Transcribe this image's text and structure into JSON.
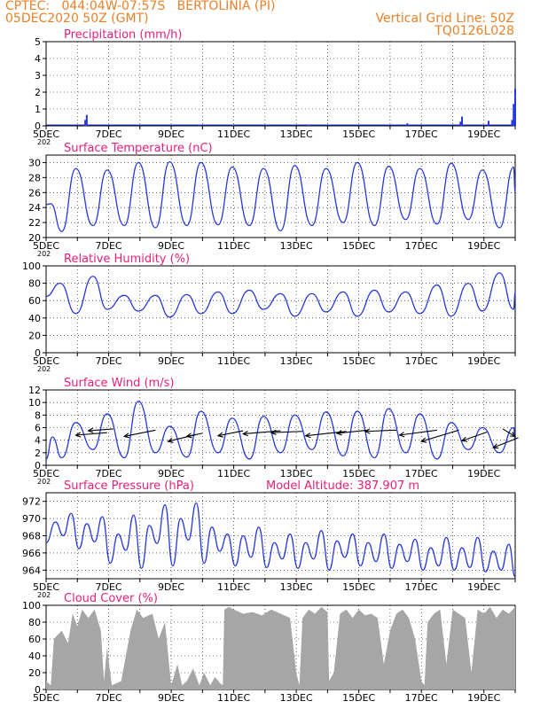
{
  "header": {
    "line1": "CPTEC:   044:04W-07:57S   BERTOLINIA (PI)",
    "line2": "05DEC2020 50Z (GMT)",
    "grid_note": "Vertical Grid Line: 50Z",
    "code": "TQ0126L028"
  },
  "colors": {
    "header": "#e8812a",
    "title": "#e8207a",
    "series": "#2638e0",
    "cloud": "#a6a6a6",
    "wind_arrow": "#000000"
  },
  "x_axis": {
    "tick_days": [
      5,
      7,
      9,
      11,
      13,
      15,
      17,
      19
    ],
    "tick_labels": [
      "5DEC",
      "7DEC",
      "9DEC",
      "11DEC",
      "13DEC",
      "15DEC",
      "17DEC",
      "19DEC"
    ],
    "year_fragment": "202",
    "start_day": 5,
    "end_day": 20
  },
  "chart_data": [
    {
      "type": "bar",
      "title": "Precipitation (mm/h)",
      "ylim": [
        0,
        5
      ],
      "yticks": [
        0,
        1,
        2,
        3,
        4,
        5
      ],
      "grid": "dotted",
      "x": [
        6.25,
        6.3,
        9.9,
        11.0,
        13.4,
        16.55,
        18.25,
        18.3,
        19.15,
        19.9,
        19.95,
        20.0
      ],
      "values": [
        0.35,
        0.65,
        0.05,
        0.05,
        0.05,
        0.15,
        0.25,
        0.55,
        0.3,
        0.35,
        1.3,
        2.2
      ]
    },
    {
      "type": "line",
      "title": "Surface Temperature (nC)",
      "ylim": [
        20,
        31
      ],
      "yticks": [
        20,
        22,
        24,
        26,
        28,
        30
      ],
      "grid": "dotted",
      "x": [
        5.0,
        5.15,
        5.5,
        5.95,
        6.5,
        6.95,
        7.5,
        7.95,
        8.5,
        8.95,
        9.5,
        9.95,
        10.5,
        10.95,
        11.5,
        11.95,
        12.5,
        12.95,
        13.5,
        13.95,
        14.5,
        14.95,
        15.5,
        15.95,
        16.5,
        16.95,
        17.5,
        17.95,
        18.5,
        18.95,
        19.5,
        19.95,
        20.0
      ],
      "values": [
        24.4,
        24.5,
        20.8,
        29.2,
        21.6,
        29.0,
        21.6,
        30.0,
        21.3,
        30.1,
        21.6,
        30.0,
        21.7,
        29.4,
        21.6,
        29.2,
        20.9,
        29.6,
        21.6,
        29.2,
        22.0,
        30.0,
        21.6,
        29.5,
        22.4,
        29.2,
        21.8,
        29.9,
        22.4,
        29.0,
        21.3,
        29.4,
        26.0
      ]
    },
    {
      "type": "line",
      "title": "Relative Humidity (%)",
      "ylim": [
        0,
        100
      ],
      "yticks": [
        0,
        20,
        40,
        60,
        80,
        100
      ],
      "grid": "dotted",
      "x": [
        5.0,
        5.45,
        5.95,
        6.5,
        6.95,
        7.5,
        7.95,
        8.5,
        8.95,
        9.5,
        9.95,
        10.5,
        10.95,
        11.5,
        11.95,
        12.5,
        12.95,
        13.5,
        13.95,
        14.5,
        14.95,
        15.5,
        15.95,
        16.5,
        16.95,
        17.5,
        17.95,
        18.5,
        18.95,
        19.5,
        19.95,
        20.0
      ],
      "values": [
        65,
        80,
        45,
        88,
        50,
        66,
        48,
        66,
        41,
        67,
        45,
        70,
        45,
        72,
        50,
        68,
        42,
        68,
        47,
        70,
        42,
        72,
        47,
        70,
        45,
        78,
        42,
        80,
        48,
        92,
        50,
        70
      ]
    },
    {
      "type": "line",
      "title": "Surface Wind (m/s)",
      "ylim": [
        0,
        12
      ],
      "yticks": [
        0,
        2,
        4,
        6,
        8,
        10,
        12
      ],
      "grid": "dotted",
      "x": [
        5.0,
        5.2,
        5.5,
        5.95,
        6.5,
        6.95,
        7.5,
        7.95,
        8.5,
        8.95,
        9.5,
        9.95,
        10.5,
        10.95,
        11.5,
        11.95,
        12.5,
        12.95,
        13.5,
        13.95,
        14.5,
        14.95,
        15.5,
        15.95,
        16.5,
        16.95,
        17.5,
        17.95,
        18.5,
        18.95,
        19.5,
        19.95,
        20.0
      ],
      "values": [
        1.0,
        4.5,
        1.2,
        6.8,
        2.5,
        8.2,
        1.2,
        10.2,
        2.0,
        6.2,
        1.3,
        8.6,
        2.0,
        7.5,
        1.0,
        7.8,
        2.0,
        8.0,
        2.5,
        8.5,
        1.5,
        8.6,
        1.2,
        9.0,
        2.0,
        8.2,
        1.0,
        6.8,
        2.5,
        6.0,
        2.0,
        6.0,
        4.0
      ],
      "wind_barbs": [
        {
          "x": 5.95,
          "y": 4.8,
          "dx": 1.0,
          "dy": 0.4
        },
        {
          "x": 6.35,
          "y": 5.5,
          "dx": 0.8,
          "dy": 0.3
        },
        {
          "x": 7.5,
          "y": 4.6,
          "dx": 1.0,
          "dy": 1.0
        },
        {
          "x": 8.9,
          "y": 3.8,
          "dx": 0.9,
          "dy": 1.1
        },
        {
          "x": 9.5,
          "y": 4.6,
          "dx": 0.5,
          "dy": 0.5
        },
        {
          "x": 10.5,
          "y": 4.7,
          "dx": 0.8,
          "dy": 0.8
        },
        {
          "x": 11.3,
          "y": 5.0,
          "dx": 1.2,
          "dy": 0.5
        },
        {
          "x": 12.2,
          "y": 5.2,
          "dx": 1.0,
          "dy": 0.2
        },
        {
          "x": 13.3,
          "y": 4.7,
          "dx": 1.3,
          "dy": 0.7
        },
        {
          "x": 14.3,
          "y": 5.1,
          "dx": 1.0,
          "dy": 0.5
        },
        {
          "x": 15.2,
          "y": 5.4,
          "dx": 1.0,
          "dy": 0.2
        },
        {
          "x": 16.3,
          "y": 4.8,
          "dx": 1.2,
          "dy": 0.8
        },
        {
          "x": 17.0,
          "y": 3.8,
          "dx": 1.2,
          "dy": 1.8
        },
        {
          "x": 18.3,
          "y": 3.9,
          "dx": 0.8,
          "dy": 1.4
        },
        {
          "x": 19.3,
          "y": 2.8,
          "dx": 0.8,
          "dy": 1.6
        },
        {
          "x": 20.0,
          "y": 4.6,
          "dx": -0.4,
          "dy": 1.2
        }
      ]
    },
    {
      "type": "line",
      "title": "Surface Pressure (hPa)",
      "annotation": "Model Altitude: 387.907 m",
      "ylim": [
        963,
        973
      ],
      "yticks": [
        964,
        966,
        968,
        970,
        972
      ],
      "grid": "dotted",
      "x": [
        5.0,
        5.3,
        5.55,
        5.8,
        6.05,
        6.3,
        6.55,
        6.8,
        7.05,
        7.3,
        7.55,
        7.8,
        8.05,
        8.3,
        8.55,
        8.8,
        9.05,
        9.3,
        9.55,
        9.8,
        10.05,
        10.3,
        10.55,
        10.8,
        11.05,
        11.3,
        11.55,
        11.8,
        12.05,
        12.3,
        12.55,
        12.8,
        13.05,
        13.3,
        13.55,
        13.8,
        14.05,
        14.3,
        14.55,
        14.8,
        15.05,
        15.3,
        15.55,
        15.8,
        16.05,
        16.3,
        16.55,
        16.8,
        17.05,
        17.3,
        17.55,
        17.8,
        18.05,
        18.3,
        18.55,
        18.8,
        19.05,
        19.3,
        19.55,
        19.8,
        20.0
      ],
      "values": [
        967.2,
        969.6,
        968.0,
        970.6,
        966.5,
        969.4,
        967.3,
        970.2,
        964.8,
        968.2,
        966.3,
        970.4,
        964.2,
        969.2,
        967.1,
        971.6,
        964.5,
        970.0,
        967.5,
        971.8,
        964.8,
        969.0,
        966.2,
        968.2,
        964.5,
        968.0,
        965.5,
        969.0,
        964.3,
        967.2,
        965.3,
        968.2,
        964.2,
        967.2,
        965.3,
        968.6,
        964.0,
        967.4,
        965.5,
        968.2,
        964.5,
        967.2,
        965.0,
        968.2,
        964.2,
        967.0,
        965.0,
        967.6,
        964.0,
        966.6,
        964.5,
        967.8,
        964.0,
        966.6,
        964.3,
        967.8,
        963.8,
        966.2,
        964.0,
        967.0,
        963.2
      ]
    },
    {
      "type": "area",
      "title": "Cloud Cover (%)",
      "ylim": [
        0,
        100
      ],
      "yticks": [
        0,
        20,
        40,
        60,
        80,
        100
      ],
      "grid": "dotted",
      "x": [
        5.0,
        5.15,
        5.25,
        5.5,
        5.7,
        5.85,
        6.0,
        6.15,
        6.35,
        6.55,
        6.75,
        6.85,
        6.95,
        7.1,
        7.4,
        7.7,
        7.9,
        8.1,
        8.4,
        8.6,
        8.8,
        9.0,
        9.2,
        9.35,
        9.5,
        9.7,
        9.9,
        10.05,
        10.25,
        10.4,
        10.55,
        10.65,
        10.7,
        10.85,
        11.0,
        11.3,
        11.6,
        11.9,
        12.2,
        12.5,
        12.8,
        13.0,
        13.1,
        13.2,
        13.4,
        13.6,
        13.8,
        14.0,
        14.05,
        14.2,
        14.4,
        14.6,
        14.8,
        15.0,
        15.2,
        15.4,
        15.6,
        15.8,
        16.0,
        16.2,
        16.4,
        16.6,
        16.8,
        17.0,
        17.1,
        17.2,
        17.4,
        17.6,
        17.8,
        18.0,
        18.2,
        18.4,
        18.6,
        18.8,
        19.0,
        19.2,
        19.4,
        19.6,
        19.8,
        20.0
      ],
      "values": [
        10,
        5,
        60,
        70,
        55,
        90,
        75,
        95,
        85,
        95,
        70,
        10,
        50,
        5,
        10,
        70,
        95,
        85,
        90,
        60,
        80,
        5,
        30,
        5,
        10,
        25,
        5,
        20,
        5,
        15,
        8,
        5,
        95,
        98,
        95,
        90,
        92,
        88,
        95,
        90,
        85,
        20,
        5,
        85,
        95,
        90,
        98,
        92,
        10,
        20,
        90,
        95,
        85,
        95,
        88,
        90,
        85,
        30,
        70,
        90,
        95,
        85,
        60,
        10,
        5,
        80,
        90,
        95,
        30,
        95,
        90,
        85,
        20,
        95,
        90,
        98,
        85,
        95,
        90,
        98
      ]
    }
  ]
}
